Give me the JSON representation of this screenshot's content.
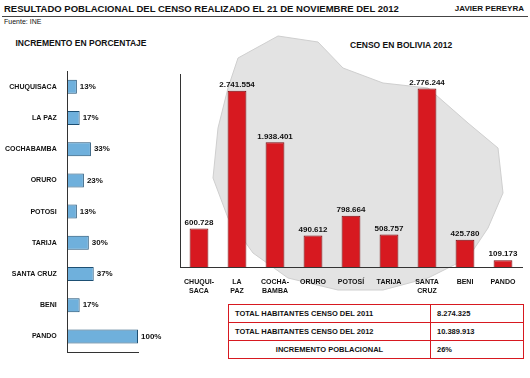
{
  "header": {
    "title": "RESULTADO POBLACIONAL DEL CENSO REALIZADO EL 21 DE NOVIEMBRE DEL 2012",
    "author": "JAVIER PEREYRA",
    "source": "Fuente: INE"
  },
  "chart_data": [
    {
      "type": "bar",
      "title": "INCREMENTO EN PORCENTAJE",
      "orientation": "horizontal",
      "categories": [
        "CHUQUISACA",
        "LA PAZ",
        "COCHABAMBA",
        "ORURO",
        "POTOSI",
        "TARIJA",
        "SANTA CRUZ",
        "BENI",
        "PANDO"
      ],
      "values": [
        13,
        17,
        33,
        23,
        13,
        30,
        37,
        17,
        100
      ],
      "value_labels": [
        "13%",
        "17%",
        "33%",
        "23%",
        "13%",
        "30%",
        "37%",
        "17%",
        "100%"
      ],
      "data_labels": true,
      "color": "#6fb0dc",
      "xlim": [
        0,
        100
      ],
      "tick_labels": "y",
      "grid": false
    },
    {
      "type": "bar",
      "title": "CENSO EN BOLIVIA 2012",
      "categories": [
        "CHUQUI-SACA",
        "LA PAZ",
        "COCHA-BAMBA",
        "ORURO",
        "POTOSÍ",
        "TARIJA",
        "SANTA CRUZ",
        "BENI",
        "PANDO"
      ],
      "values": [
        600728,
        2741554,
        1938401,
        490612,
        798664,
        508757,
        2776244,
        425780,
        109173
      ],
      "value_labels": [
        "600.728",
        "2.741.554",
        "1.938.401",
        "490.612",
        "798.664",
        "508.757",
        "2.776.244",
        "425.780",
        "109.173"
      ],
      "data_labels": true,
      "color": "#d71920",
      "ylim": [
        0,
        3000000
      ],
      "tick_labels": "x",
      "grid": false
    }
  ],
  "table": {
    "rows": [
      [
        "TOTAL HABITANTES CENSO DEL 2011",
        "8.274.325"
      ],
      [
        "TOTAL HABITANTES CENSO DEL 2012",
        "10.389.913"
      ],
      [
        "INCREMENTO POBLACIONAL",
        "26%"
      ]
    ]
  }
}
